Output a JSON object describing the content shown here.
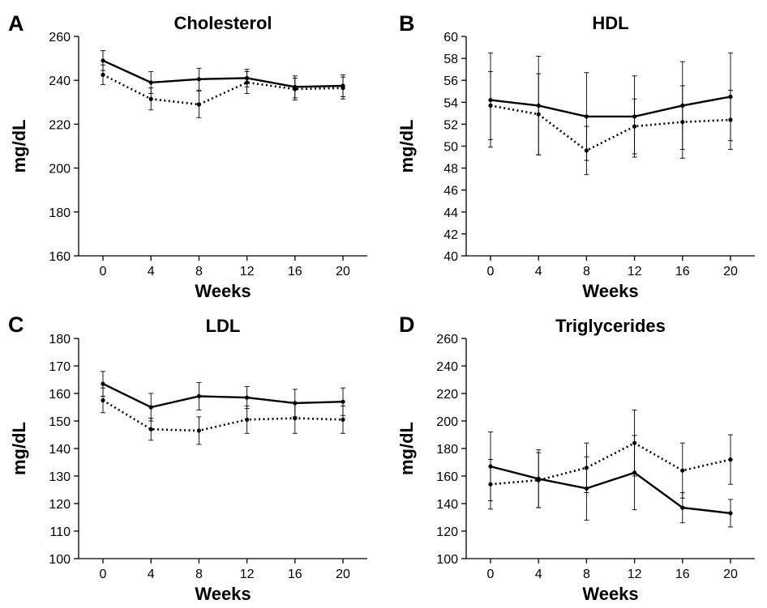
{
  "chart_data": [
    {
      "type": "line",
      "panel": "A",
      "title": "Cholesterol",
      "xlabel": "Weeks",
      "ylabel": "mg/dL",
      "x": [
        0,
        4,
        8,
        12,
        16,
        20
      ],
      "x_ticks": [
        "0",
        "4",
        "8",
        "12",
        "16",
        "20"
      ],
      "ylim": [
        160,
        260
      ],
      "y_ticks": [
        "160",
        "180",
        "200",
        "220",
        "240",
        "260"
      ],
      "series": [
        {
          "style": "solid",
          "values": [
            249,
            239,
            240.5,
            241,
            237,
            237.5
          ],
          "errors": [
            4.5,
            5,
            5,
            4,
            5,
            5
          ]
        },
        {
          "style": "dotted",
          "values": [
            242.5,
            231.5,
            229,
            239,
            236,
            236.5
          ],
          "errors": [
            4.5,
            5,
            6,
            5,
            5,
            5
          ]
        }
      ]
    },
    {
      "type": "line",
      "panel": "B",
      "title": "HDL",
      "xlabel": "Weeks",
      "ylabel": "mg/dL",
      "x": [
        0,
        4,
        8,
        12,
        16,
        20
      ],
      "x_ticks": [
        "0",
        "4",
        "8",
        "12",
        "16",
        "20"
      ],
      "ylim": [
        40,
        60
      ],
      "y_ticks": [
        "40",
        "42",
        "44",
        "46",
        "48",
        "50",
        "52",
        "54",
        "56",
        "58",
        "60"
      ],
      "series": [
        {
          "style": "solid",
          "values": [
            54.2,
            53.7,
            52.7,
            52.7,
            53.7,
            54.5
          ],
          "errors": [
            4.3,
            4.5,
            4,
            3.7,
            4,
            4
          ]
        },
        {
          "style": "dotted",
          "values": [
            53.7,
            52.9,
            49.6,
            51.8,
            52.2,
            52.4
          ],
          "errors": [
            3.1,
            3.7,
            2.2,
            2.5,
            3.3,
            2.7
          ]
        }
      ]
    },
    {
      "type": "line",
      "panel": "C",
      "title": "LDL",
      "xlabel": "Weeks",
      "ylabel": "mg/dL",
      "x": [
        0,
        4,
        8,
        12,
        16,
        20
      ],
      "x_ticks": [
        "0",
        "4",
        "8",
        "12",
        "16",
        "20"
      ],
      "ylim": [
        100,
        180
      ],
      "y_ticks": [
        "100",
        "110",
        "120",
        "130",
        "140",
        "150",
        "160",
        "170",
        "180"
      ],
      "series": [
        {
          "style": "solid",
          "values": [
            163.5,
            155,
            159,
            158.5,
            156.5,
            157
          ],
          "errors": [
            4.5,
            5,
            5,
            4,
            5,
            5
          ]
        },
        {
          "style": "dotted",
          "values": [
            157.5,
            147,
            146.5,
            150.5,
            151,
            150.5
          ],
          "errors": [
            4.5,
            4,
            5,
            5,
            5.5,
            5
          ]
        }
      ]
    },
    {
      "type": "line",
      "panel": "D",
      "title": "Triglycerides",
      "xlabel": "Weeks",
      "ylabel": "mg/dL",
      "x": [
        0,
        4,
        8,
        12,
        16,
        20
      ],
      "x_ticks": [
        "0",
        "4",
        "8",
        "12",
        "16",
        "20"
      ],
      "ylim": [
        100,
        260
      ],
      "y_ticks": [
        "100",
        "120",
        "140",
        "160",
        "180",
        "200",
        "220",
        "240",
        "260"
      ],
      "series": [
        {
          "style": "solid",
          "values": [
            167,
            158,
            151,
            162.5,
            137,
            133
          ],
          "errors": [
            25,
            21,
            23,
            27,
            11,
            10
          ]
        },
        {
          "style": "dotted",
          "values": [
            154,
            157,
            166,
            184,
            164,
            172
          ],
          "errors": [
            18,
            20,
            18,
            24,
            20,
            18
          ]
        }
      ]
    }
  ]
}
